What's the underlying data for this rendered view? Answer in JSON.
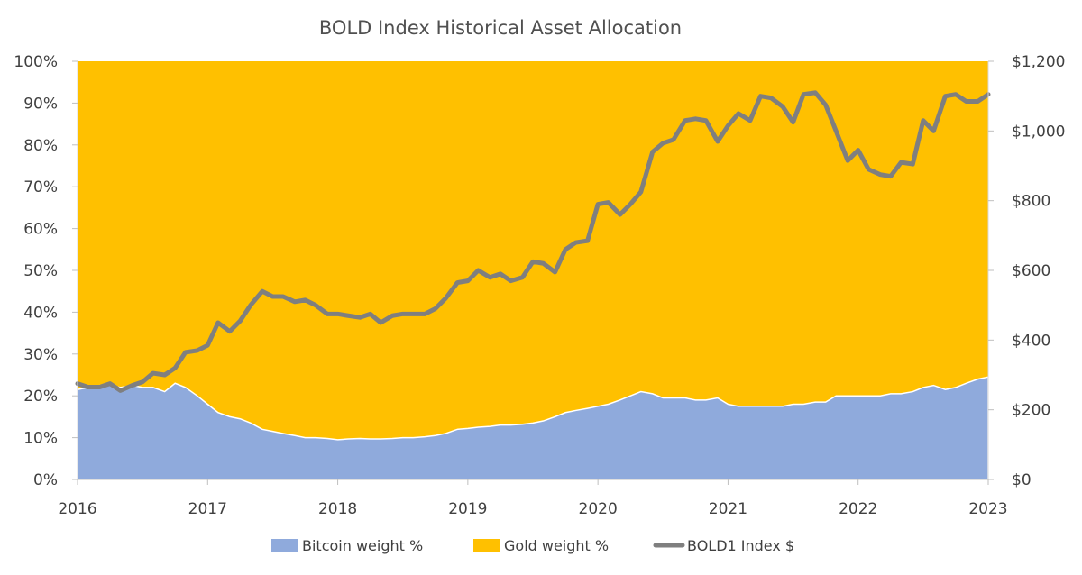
{
  "chart_data": {
    "type": "area",
    "title": "BOLD Index Historical Asset Allocation",
    "x_ticks": [
      "2016",
      "2017",
      "2018",
      "2019",
      "2020",
      "2021",
      "2022",
      "2023"
    ],
    "xlim": [
      2016,
      2023
    ],
    "y_left_ticks": [
      "0%",
      "10%",
      "20%",
      "30%",
      "40%",
      "50%",
      "60%",
      "70%",
      "80%",
      "90%",
      "100%"
    ],
    "ylim_left": [
      0,
      100
    ],
    "y_right_ticks": [
      "$0",
      "$200",
      "$400",
      "$600",
      "$800",
      "$1,000",
      "$1,200"
    ],
    "ylim_right": [
      0,
      1200
    ],
    "grid": false,
    "legend_position": "bottom",
    "colors": {
      "bitcoin": "#8faadc",
      "gold": "#ffc000",
      "index": "#7f7f7f"
    },
    "series": [
      {
        "name": "Bitcoin weight %",
        "kind": "area",
        "x": [
          2016.0,
          2016.08,
          2016.17,
          2016.25,
          2016.33,
          2016.42,
          2016.5,
          2016.58,
          2016.67,
          2016.75,
          2016.83,
          2016.92,
          2017.0,
          2017.08,
          2017.17,
          2017.25,
          2017.33,
          2017.42,
          2017.5,
          2017.58,
          2017.67,
          2017.75,
          2017.83,
          2017.92,
          2018.0,
          2018.08,
          2018.17,
          2018.25,
          2018.33,
          2018.42,
          2018.5,
          2018.58,
          2018.67,
          2018.75,
          2018.83,
          2018.92,
          2019.0,
          2019.08,
          2019.17,
          2019.25,
          2019.33,
          2019.42,
          2019.5,
          2019.58,
          2019.67,
          2019.75,
          2019.83,
          2019.92,
          2020.0,
          2020.08,
          2020.17,
          2020.25,
          2020.33,
          2020.42,
          2020.5,
          2020.58,
          2020.67,
          2020.75,
          2020.83,
          2020.92,
          2021.0,
          2021.08,
          2021.17,
          2021.25,
          2021.33,
          2021.42,
          2021.5,
          2021.58,
          2021.67,
          2021.75,
          2021.83,
          2021.92,
          2022.0,
          2022.08,
          2022.17,
          2022.25,
          2022.33,
          2022.42,
          2022.5,
          2022.58,
          2022.67,
          2022.75,
          2022.83,
          2022.92,
          2023.0
        ],
        "values": [
          21.5,
          22,
          22.5,
          22.5,
          22,
          22.5,
          22,
          22,
          21,
          23,
          22,
          20,
          18,
          16,
          15,
          14.5,
          13.5,
          12,
          11.5,
          11,
          10.5,
          10,
          10,
          9.8,
          9.5,
          9.7,
          9.8,
          9.7,
          9.7,
          9.8,
          10,
          10,
          10.2,
          10.5,
          11,
          12,
          12.2,
          12.5,
          12.7,
          13,
          13,
          13.2,
          13.5,
          14,
          15,
          16,
          16.5,
          17,
          17.5,
          18,
          19,
          20,
          21,
          20.5,
          19.5,
          19.5,
          19.5,
          19,
          19,
          19.5,
          18,
          17.5,
          17.5,
          17.5,
          17.5,
          17.5,
          18,
          18,
          18.5,
          18.5,
          20,
          20,
          20,
          20,
          20,
          20.5,
          20.5,
          21,
          22,
          22.5,
          21.5,
          22,
          23,
          24,
          24.5
        ]
      },
      {
        "name": "Gold weight %",
        "kind": "area_stacked_to_100",
        "values_note_free": true
      },
      {
        "name": "BOLD1 Index $",
        "kind": "line",
        "axis": "right",
        "x": [
          2016.0,
          2016.08,
          2016.17,
          2016.25,
          2016.33,
          2016.42,
          2016.5,
          2016.58,
          2016.67,
          2016.75,
          2016.83,
          2016.92,
          2017.0,
          2017.08,
          2017.17,
          2017.25,
          2017.33,
          2017.42,
          2017.5,
          2017.58,
          2017.67,
          2017.75,
          2017.83,
          2017.92,
          2018.0,
          2018.08,
          2018.17,
          2018.25,
          2018.33,
          2018.42,
          2018.5,
          2018.58,
          2018.67,
          2018.75,
          2018.83,
          2018.92,
          2019.0,
          2019.08,
          2019.17,
          2019.25,
          2019.33,
          2019.42,
          2019.5,
          2019.58,
          2019.67,
          2019.75,
          2019.83,
          2019.92,
          2020.0,
          2020.08,
          2020.17,
          2020.25,
          2020.33,
          2020.42,
          2020.5,
          2020.58,
          2020.67,
          2020.75,
          2020.83,
          2020.92,
          2021.0,
          2021.08,
          2021.17,
          2021.25,
          2021.33,
          2021.42,
          2021.5,
          2021.58,
          2021.67,
          2021.75,
          2021.83,
          2021.92,
          2022.0,
          2022.08,
          2022.17,
          2022.25,
          2022.33,
          2022.42,
          2022.5,
          2022.58,
          2022.67,
          2022.75,
          2022.83,
          2022.92,
          2023.0
        ],
        "values": [
          275,
          265,
          265,
          275,
          255,
          270,
          280,
          305,
          300,
          320,
          365,
          370,
          385,
          450,
          425,
          455,
          500,
          540,
          525,
          525,
          510,
          515,
          500,
          475,
          475,
          470,
          465,
          475,
          450,
          470,
          475,
          475,
          475,
          490,
          520,
          565,
          570,
          600,
          580,
          590,
          570,
          580,
          625,
          620,
          595,
          660,
          680,
          685,
          790,
          795,
          760,
          790,
          825,
          940,
          965,
          975,
          1030,
          1035,
          1030,
          970,
          1015,
          1050,
          1030,
          1100,
          1095,
          1070,
          1025,
          1105,
          1110,
          1075,
          1000,
          915,
          945,
          890,
          875,
          870,
          910,
          905,
          1030,
          1000,
          1100,
          1105,
          1085,
          1085,
          1105
        ]
      }
    ]
  },
  "legend": {
    "bitcoin": "Bitcoin weight %",
    "gold": "Gold weight %",
    "index": "BOLD1 Index $"
  }
}
